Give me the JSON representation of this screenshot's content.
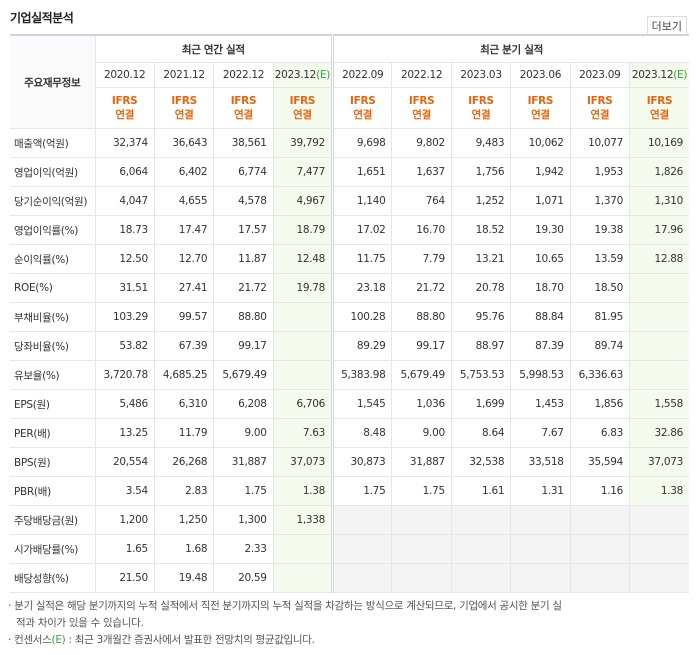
{
  "title": "기업실적분석",
  "more": "더보기",
  "table": {
    "corner": "주요재무정보",
    "groups": [
      {
        "label": "최근 연간 실적",
        "columns": [
          {
            "period": "2020.12",
            "standard": "IFRS",
            "basis": "연결"
          },
          {
            "period": "2021.12",
            "standard": "IFRS",
            "basis": "연결"
          },
          {
            "period": "2022.12",
            "standard": "IFRS",
            "basis": "연결"
          },
          {
            "period": "2023.12",
            "estimate": "(E)",
            "standard": "IFRS",
            "basis": "연결"
          }
        ]
      },
      {
        "label": "최근 분기 실적",
        "columns": [
          {
            "period": "2022.09",
            "standard": "IFRS",
            "basis": "연결"
          },
          {
            "period": "2022.12",
            "standard": "IFRS",
            "basis": "연결"
          },
          {
            "period": "2023.03",
            "standard": "IFRS",
            "basis": "연결"
          },
          {
            "period": "2023.06",
            "standard": "IFRS",
            "basis": "연결"
          },
          {
            "period": "2023.09",
            "standard": "IFRS",
            "basis": "연결"
          },
          {
            "period": "2023.12",
            "estimate": "(E)",
            "standard": "IFRS",
            "basis": "연결"
          }
        ]
      }
    ],
    "sections": [
      {
        "rows": [
          {
            "label": "매출액(억원)",
            "values": [
              "32,374",
              "36,643",
              "38,561",
              "39,792",
              "9,698",
              "9,802",
              "9,483",
              "10,062",
              "10,077",
              "10,169"
            ]
          },
          {
            "label": "영업이익(억원)",
            "values": [
              "6,064",
              "6,402",
              "6,774",
              "7,477",
              "1,651",
              "1,637",
              "1,756",
              "1,942",
              "1,953",
              "1,826"
            ]
          },
          {
            "label": "당기순이익(억원)",
            "values": [
              "4,047",
              "4,655",
              "4,578",
              "4,967",
              "1,140",
              "764",
              "1,252",
              "1,071",
              "1,370",
              "1,310"
            ]
          }
        ]
      },
      {
        "rows": [
          {
            "label": "영업이익률(%)",
            "values": [
              "18.73",
              "17.47",
              "17.57",
              "18.79",
              "17.02",
              "16.70",
              "18.52",
              "19.30",
              "19.38",
              "17.96"
            ]
          },
          {
            "label": "순이익률(%)",
            "values": [
              "12.50",
              "12.70",
              "11.87",
              "12.48",
              "11.75",
              "7.79",
              "13.21",
              "10.65",
              "13.59",
              "12.88"
            ]
          },
          {
            "label": "ROE(%)",
            "values": [
              "31.51",
              "27.41",
              "21.72",
              "19.78",
              "23.18",
              "21.72",
              "20.78",
              "18.70",
              "18.50",
              null
            ]
          },
          {
            "label": "부채비율(%)",
            "values": [
              "103.29",
              "99.57",
              "88.80",
              null,
              "100.28",
              "88.80",
              "95.76",
              "88.84",
              "81.95",
              null
            ]
          },
          {
            "label": "당좌비율(%)",
            "values": [
              "53.82",
              "67.39",
              "99.17",
              null,
              "89.29",
              "99.17",
              "88.97",
              "87.39",
              "89.74",
              null
            ]
          },
          {
            "label": "유보율(%)",
            "values": [
              "3,720.78",
              "4,685.25",
              "5,679.49",
              null,
              "5,383.98",
              "5,679.49",
              "5,753.53",
              "5,998.53",
              "6,336.63",
              null
            ]
          }
        ]
      },
      {
        "rows": [
          {
            "label": "EPS(원)",
            "values": [
              "5,486",
              "6,310",
              "6,208",
              "6,706",
              "1,545",
              "1,036",
              "1,699",
              "1,453",
              "1,856",
              "1,558"
            ]
          },
          {
            "label": "PER(배)",
            "values": [
              "13.25",
              "11.79",
              "9.00",
              "7.63",
              "8.48",
              "9.00",
              "8.64",
              "7.67",
              "6.83",
              "32.86"
            ]
          },
          {
            "label": "BPS(원)",
            "values": [
              "20,554",
              "26,268",
              "31,887",
              "37,073",
              "30,873",
              "31,887",
              "32,538",
              "33,518",
              "35,594",
              "37,073"
            ]
          },
          {
            "label": "PBR(배)",
            "values": [
              "3.54",
              "2.83",
              "1.75",
              "1.38",
              "1.75",
              "1.75",
              "1.61",
              "1.31",
              "1.16",
              "1.38"
            ]
          }
        ]
      },
      {
        "rows": [
          {
            "label": "주당배당금(원)",
            "values": [
              "1,200",
              "1,250",
              "1,300",
              "1,338",
              null,
              null,
              null,
              null,
              null,
              null
            ]
          },
          {
            "label": "시가배당률(%)",
            "values": [
              "1.65",
              "1.68",
              "2.33",
              null,
              null,
              null,
              null,
              null,
              null,
              null
            ]
          },
          {
            "label": "배당성향(%)",
            "values": [
              "21.50",
              "19.48",
              "20.59",
              null,
              null,
              null,
              null,
              null,
              null,
              null
            ]
          }
        ]
      }
    ]
  },
  "notes": [
    {
      "text": "분기 실적은 해당 분기까지의 누적 실적에서 직전 분기까지의 누적 실적을 차감하는 방식으로 계산되므로, 기업에서 공시한 분기 실적과 차이가 있을 수 있습니다."
    },
    {
      "term": "컨센서스",
      "mark": "(E)",
      "text": " : 최근 3개월간 증권사에서 발표한 전망치의 평균값입니다."
    }
  ]
}
